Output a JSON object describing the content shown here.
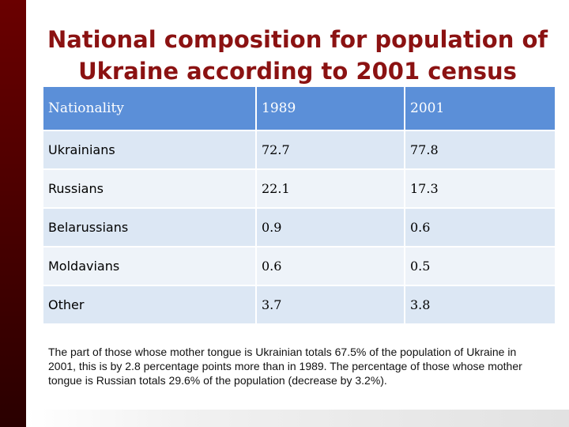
{
  "title": {
    "line1": "National composition for population of",
    "line2": "Ukraine according to 2001 census"
  },
  "table": {
    "headers": [
      "Nationality",
      "1989",
      "2001"
    ],
    "rows": [
      [
        "Ukrainians",
        "72.7",
        "77.8"
      ],
      [
        "Russians",
        "22.1",
        "17.3"
      ],
      [
        "Belarussians",
        "0.9",
        "0.6"
      ],
      [
        "Moldavians",
        "0.6",
        "0.5"
      ],
      [
        "Other",
        "3.7",
        "3.8"
      ]
    ]
  },
  "note": "The part of those whose mother tongue is Ukrainian totals 67.5% of the population of Ukraine in 2001, this is by 2.8 percentage points more than in 1989. The percentage of those whose mother tongue is Russian totals 29.6% of the population (decrease by 3.2%).",
  "colors": {
    "title": "#8b1212",
    "header_bg": "#5b8fd8",
    "row_a": "#dce7f4",
    "row_b": "#eef3f9",
    "side_bar": "#4a0000"
  }
}
